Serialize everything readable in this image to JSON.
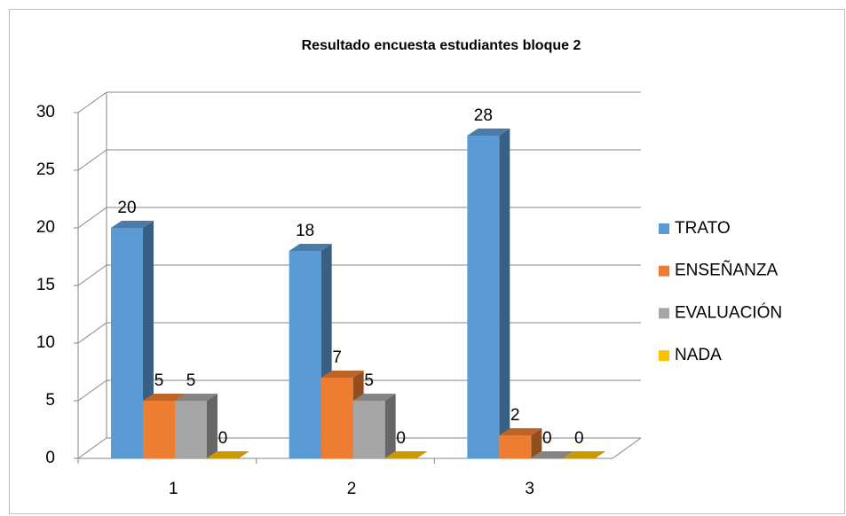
{
  "chart_data": {
    "type": "bar",
    "title": "Resultado encuesta estudiantes bloque 2",
    "categories": [
      "1",
      "2",
      "3"
    ],
    "series": [
      {
        "name": "TRATO",
        "color": "#5b9bd5",
        "values": [
          20,
          18,
          28
        ]
      },
      {
        "name": "ENSEÑANZA",
        "color": "#ed7d31",
        "values": [
          5,
          7,
          2
        ]
      },
      {
        "name": "EVALUACIÓN",
        "color": "#a5a5a5",
        "values": [
          5,
          5,
          0
        ]
      },
      {
        "name": "NADA",
        "color": "#ffc000",
        "values": [
          0,
          0,
          0
        ]
      }
    ],
    "ylim": [
      0,
      30
    ],
    "yticks": [
      0,
      5,
      10,
      15,
      20,
      25,
      30
    ],
    "grid": true,
    "legend": "right"
  }
}
